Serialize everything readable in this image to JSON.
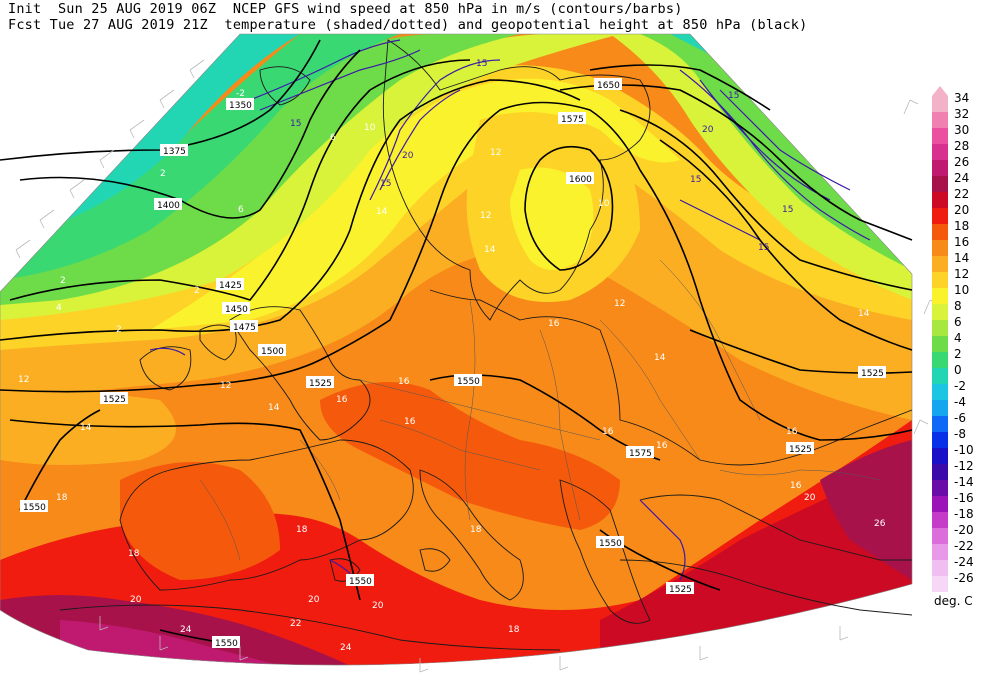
{
  "header": {
    "line1": "Init  Sun 25 AUG 2019 06Z  NCEP GFS wind speed at 850 hPa in m/s (contours/barbs)",
    "line2": "Fcst Tue 27 AUG 2019 21Z  temperature (shaded/dotted) and geopotential height at 850 hPa (black)"
  },
  "legend": {
    "unit": "deg. C",
    "levels": [
      {
        "label": "34",
        "color": "#f4b2c8"
      },
      {
        "label": "32",
        "color": "#f080b0"
      },
      {
        "label": "30",
        "color": "#ea4fa0"
      },
      {
        "label": "28",
        "color": "#d8308f"
      },
      {
        "label": "26",
        "color": "#c01a70"
      },
      {
        "label": "24",
        "color": "#a8124a"
      },
      {
        "label": "22",
        "color": "#cc0a24"
      },
      {
        "label": "20",
        "color": "#f01c10"
      },
      {
        "label": "18",
        "color": "#f55a0c"
      },
      {
        "label": "16",
        "color": "#f78a18"
      },
      {
        "label": "14",
        "color": "#fbae22"
      },
      {
        "label": "12",
        "color": "#fcd326"
      },
      {
        "label": "10",
        "color": "#fbf22e"
      },
      {
        "label": "8",
        "color": "#d9f23a"
      },
      {
        "label": "6",
        "color": "#a8e640"
      },
      {
        "label": "4",
        "color": "#6edc48"
      },
      {
        "label": "2",
        "color": "#3ad872"
      },
      {
        "label": "0",
        "color": "#22d6b4"
      },
      {
        "label": "-2",
        "color": "#1cc6e2"
      },
      {
        "label": "-4",
        "color": "#16a6f0"
      },
      {
        "label": "-6",
        "color": "#1068f6"
      },
      {
        "label": "-8",
        "color": "#0830e8"
      },
      {
        "label": "-10",
        "color": "#1a10c8"
      },
      {
        "label": "-12",
        "color": "#3c0aa8"
      },
      {
        "label": "-14",
        "color": "#6a0ca8"
      },
      {
        "label": "-16",
        "color": "#9a14b8"
      },
      {
        "label": "-18",
        "color": "#c43cc8"
      },
      {
        "label": "-20",
        "color": "#dc6edc"
      },
      {
        "label": "-22",
        "color": "#e89ae8"
      },
      {
        "label": "-24",
        "color": "#f0bef0"
      },
      {
        "label": "-26",
        "color": "#f6d8f6"
      }
    ]
  },
  "height_labels": [
    "1350",
    "1375",
    "1400",
    "1425",
    "1450",
    "1475",
    "1500",
    "1525",
    "1550",
    "1575",
    "1600",
    "1650"
  ],
  "wind_labels": [
    "15",
    "20"
  ],
  "temp_labels": [
    "-2",
    "2",
    "4",
    "6",
    "10",
    "12",
    "14",
    "16",
    "18",
    "20",
    "22",
    "24",
    "26"
  ]
}
